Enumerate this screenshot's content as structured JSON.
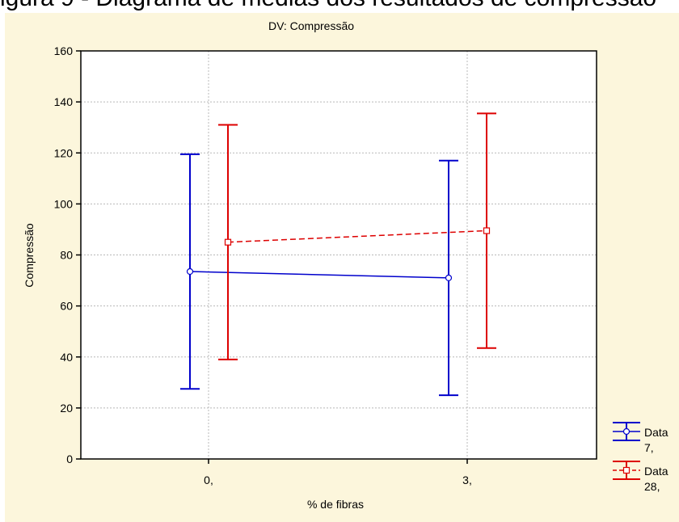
{
  "page": {
    "top_caption": "igura 9 - Diagrama de médias dos resultados de compressão"
  },
  "chart_data": {
    "type": "line",
    "title": "DV: Compressão",
    "xlabel": "% de fibras",
    "ylabel": "Compressão",
    "categories": [
      "0,",
      "3,"
    ],
    "ylim": [
      0,
      160
    ],
    "yticks": [
      0,
      20,
      40,
      60,
      80,
      100,
      120,
      140,
      160
    ],
    "grid": true,
    "legend_position": "bottom-right",
    "series": [
      {
        "name": "Data 7,",
        "legend_lines": [
          "Data",
          "7,"
        ],
        "color": "#0000cc",
        "line_style": "solid",
        "marker": "circle",
        "values": [
          73.5,
          71
        ],
        "lower": [
          27.5,
          25
        ],
        "upper": [
          119.5,
          117
        ]
      },
      {
        "name": "Data 28,",
        "legend_lines": [
          "Data",
          "28,"
        ],
        "color": "#dd0000",
        "line_style": "dashed",
        "marker": "square",
        "values": [
          85,
          89.5
        ],
        "lower": [
          39,
          43.5
        ],
        "upper": [
          131,
          135.5
        ]
      }
    ]
  }
}
